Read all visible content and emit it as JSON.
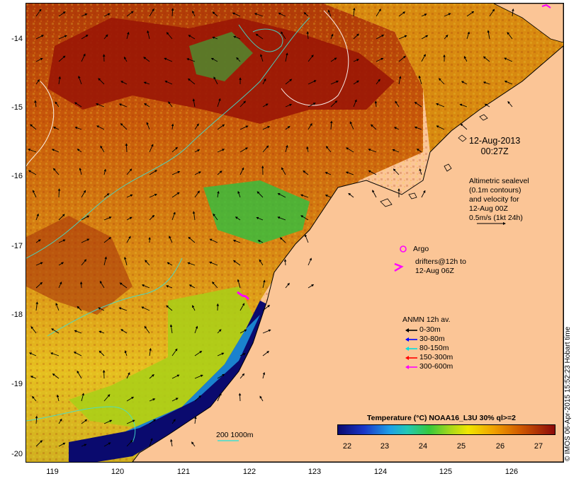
{
  "map": {
    "lat_ticks": [
      "-14",
      "-15",
      "-16",
      "-17",
      "-18",
      "-19",
      "-20"
    ],
    "lon_ticks": [
      "119",
      "120",
      "121",
      "122",
      "123",
      "124",
      "125",
      "126"
    ],
    "lat_range": [
      -20.1,
      -13.55
    ],
    "lon_range": [
      118.65,
      126.7
    ]
  },
  "annotations": {
    "datetime_line1": "12-Aug-2013",
    "datetime_line2": "00:27Z",
    "sealevel_line1": "Altimetric sealevel",
    "sealevel_line2": "(0.1m contours)",
    "sealevel_line3": "and velocity for",
    "sealevel_line4": "12-Aug 00Z",
    "sealevel_line5": "0.5m/s (1kt 24h)",
    "argo": "Argo",
    "drifters_line1": "drifters@12h to",
    "drifters_line2": "12-Aug 06Z",
    "scale_label": "200  1000m"
  },
  "anmn_legend": {
    "title": "ANMN 12h av.",
    "items": [
      {
        "label": "0-30m",
        "color": "#000000"
      },
      {
        "label": "30-80m",
        "color": "#0000ff"
      },
      {
        "label": "80-150m",
        "color": "#00e0e0"
      },
      {
        "label": "150-300m",
        "color": "#ff0000"
      },
      {
        "label": "300-600m",
        "color": "#ff00ff"
      }
    ]
  },
  "colorbar": {
    "title": "Temperature (°C) NOAA16_L3U 30% ql>=2",
    "ticks": [
      "22",
      "23",
      "24",
      "25",
      "26",
      "27"
    ],
    "range": [
      21.7,
      27.5
    ]
  },
  "credit": "© IMOS 06-Apr-2015 15:52:23 Hobart time",
  "colors": {
    "land": "#fbc596",
    "warm": "#a01a08",
    "cold": "#0a0a6e",
    "drifter": "#ff00ff",
    "contour": "#40e0d0"
  }
}
